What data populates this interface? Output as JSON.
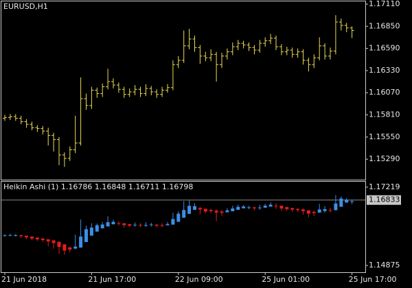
{
  "chart_data": [
    {
      "type": "ohlc",
      "title": "EURUSD,H1",
      "color": "#eedd55",
      "categories": [
        "21 Jun 2018",
        null,
        null,
        null,
        null,
        null,
        null,
        null,
        null,
        null,
        null,
        null,
        null,
        null,
        null,
        null,
        "21 Jun 17:00",
        null,
        null,
        null,
        null,
        null,
        null,
        null,
        null,
        null,
        null,
        null,
        null,
        null,
        null,
        null,
        "22 Jun 09:00",
        null,
        null,
        null,
        null,
        null,
        null,
        null,
        null,
        null,
        null,
        null,
        null,
        null,
        null,
        null,
        "25 Jun 01:00",
        null,
        null,
        null,
        null,
        null,
        null,
        null,
        null,
        null,
        null,
        null,
        null,
        null,
        null,
        null,
        "25 Jun 17:00"
      ],
      "open": [
        1.1577,
        1.1578,
        1.1579,
        1.1577,
        1.1573,
        1.157,
        1.1566,
        1.1565,
        1.1562,
        1.1557,
        1.1552,
        1.1534,
        1.153,
        1.154,
        1.1548,
        1.16,
        1.1592,
        1.161,
        1.1606,
        1.1614,
        1.162,
        1.1616,
        1.1611,
        1.1605,
        1.1608,
        1.1611,
        1.1606,
        1.1612,
        1.1608,
        1.1605,
        1.161,
        1.1613,
        1.164,
        1.1645,
        1.1662,
        1.167,
        1.166,
        1.165,
        1.1648,
        1.1652,
        1.164,
        1.165,
        1.1655,
        1.1661,
        1.1665,
        1.1663,
        1.166,
        1.1657,
        1.1665,
        1.1668,
        1.1671,
        1.1661,
        1.1655,
        1.1657,
        1.1652,
        1.1655,
        1.1645,
        1.164,
        1.1648,
        1.1662,
        1.165,
        1.1656,
        1.169,
        1.1686,
        1.1683
      ],
      "high": [
        1.1581,
        1.1582,
        1.1582,
        1.158,
        1.1576,
        1.1573,
        1.1569,
        1.1568,
        1.1566,
        1.156,
        1.1555,
        1.1537,
        1.1544,
        1.158,
        1.1625,
        1.1606,
        1.1614,
        1.1613,
        1.1618,
        1.1635,
        1.1624,
        1.1619,
        1.1614,
        1.1612,
        1.1616,
        1.1614,
        1.1617,
        1.1615,
        1.1611,
        1.1614,
        1.1617,
        1.1645,
        1.165,
        1.168,
        1.1682,
        1.1674,
        1.1663,
        1.1655,
        1.1658,
        1.1655,
        1.1654,
        1.1659,
        1.1666,
        1.1669,
        1.1668,
        1.1666,
        1.1663,
        1.1669,
        1.1672,
        1.1676,
        1.1674,
        1.1664,
        1.1661,
        1.166,
        1.1659,
        1.1658,
        1.1648,
        1.1652,
        1.1672,
        1.1665,
        1.166,
        1.1698,
        1.1694,
        1.1689,
        1.16848
      ],
      "low": [
        1.1574,
        1.1575,
        1.1574,
        1.157,
        1.1566,
        1.1563,
        1.1561,
        1.1558,
        1.1545,
        1.1538,
        1.1522,
        1.152,
        1.1527,
        1.1536,
        1.1545,
        1.1587,
        1.1588,
        1.1601,
        1.1602,
        1.1611,
        1.1612,
        1.1607,
        1.1601,
        1.1602,
        1.1604,
        1.1602,
        1.1603,
        1.1604,
        1.1601,
        1.1602,
        1.1607,
        1.161,
        1.1636,
        1.1642,
        1.1658,
        1.1655,
        1.1641,
        1.1644,
        1.1644,
        1.162,
        1.1636,
        1.1646,
        1.1651,
        1.1657,
        1.1659,
        1.1656,
        1.1652,
        1.1654,
        1.1661,
        1.1664,
        1.1657,
        1.1651,
        1.1651,
        1.1648,
        1.1648,
        1.164,
        1.1632,
        1.1636,
        1.1645,
        1.1646,
        1.1646,
        1.1652,
        1.168,
        1.1678,
        1.16711
      ],
      "close": [
        1.1578,
        1.1579,
        1.1577,
        1.1573,
        1.157,
        1.1566,
        1.1565,
        1.1562,
        1.1557,
        1.1552,
        1.1534,
        1.153,
        1.154,
        1.1548,
        1.16,
        1.1592,
        1.161,
        1.1606,
        1.1614,
        1.162,
        1.1616,
        1.1611,
        1.1605,
        1.1608,
        1.1611,
        1.1606,
        1.1612,
        1.1608,
        1.1605,
        1.161,
        1.1613,
        1.164,
        1.1645,
        1.1662,
        1.167,
        1.166,
        1.165,
        1.1648,
        1.1652,
        1.164,
        1.165,
        1.1655,
        1.1661,
        1.1665,
        1.1663,
        1.166,
        1.1657,
        1.1665,
        1.1668,
        1.1671,
        1.1661,
        1.1655,
        1.1657,
        1.1652,
        1.1655,
        1.1645,
        1.164,
        1.1648,
        1.1662,
        1.165,
        1.1656,
        1.169,
        1.1686,
        1.1683,
        1.168
      ],
      "ylim": [
        1.1505,
        1.17142
      ],
      "yticks": [
        {
          "value": 1.1711,
          "label": "1.17110"
        },
        {
          "value": 1.1685,
          "label": "1.16850"
        },
        {
          "value": 1.1659,
          "label": "1.16590"
        },
        {
          "value": 1.1633,
          "label": "1.16330"
        },
        {
          "value": 1.1607,
          "label": "1.16070"
        },
        {
          "value": 1.1581,
          "label": "1.15810"
        },
        {
          "value": 1.1555,
          "label": "1.15550"
        },
        {
          "value": 1.1529,
          "label": "1.15290"
        }
      ]
    },
    {
      "type": "candlestick",
      "title": "Heikin Ashi (1)",
      "up_color": "#3c8ee6",
      "down_color": "#e41c1c",
      "open": [
        1.1577,
        1.157725,
        1.15779,
        1.157795,
        1.15765,
        1.1574,
        1.1571,
        1.156825,
        1.15659,
        1.15627,
        1.15586,
        1.15508,
        1.15414,
        1.15382,
        1.15411,
        1.15576,
        1.15768,
        1.15889,
        1.15985,
        1.16043,
        1.16107,
        1.16144,
        1.1614,
        1.1611,
        1.16088,
        1.16092,
        1.16089,
        1.1609,
        1.16095,
        1.1608,
        1.16078,
        1.16097,
        1.16181,
        1.16303,
        1.16419,
        1.1654,
        1.16595,
        1.16573,
        1.16532,
        1.16516,
        1.16488,
        1.16469,
        1.16497,
        1.16539,
        1.16585,
        1.16613,
        1.16614,
        1.166,
        1.16605,
        1.16635,
        1.16665,
        1.16663,
        1.16622,
        1.16591,
        1.16568,
        1.16552,
        1.16526,
        1.16476,
        1.16458,
        1.16504,
        1.16532,
        1.16531,
        1.16631,
        1.16756,
        1.16786
      ],
      "high": [
        1.1581,
        1.1582,
        1.1582,
        1.158,
        1.15765,
        1.1574,
        1.1571,
        1.156825,
        1.1566,
        1.15627,
        1.15586,
        1.15508,
        1.1544,
        1.158,
        1.1625,
        1.1606,
        1.1614,
        1.1613,
        1.1618,
        1.1635,
        1.1624,
        1.1619,
        1.1614,
        1.1612,
        1.1616,
        1.1614,
        1.1617,
        1.1615,
        1.1611,
        1.1614,
        1.1617,
        1.1645,
        1.165,
        1.168,
        1.1682,
        1.1674,
        1.1663,
        1.16573,
        1.1658,
        1.1655,
        1.1654,
        1.1659,
        1.1666,
        1.1669,
        1.1668,
        1.1666,
        1.1663,
        1.1669,
        1.1672,
        1.1676,
        1.1674,
        1.16663,
        1.16622,
        1.166,
        1.1659,
        1.1658,
        1.16526,
        1.1652,
        1.1672,
        1.1665,
        1.166,
        1.1698,
        1.1694,
        1.1689,
        1.16848
      ],
      "low": [
        1.1574,
        1.1575,
        1.1574,
        1.157,
        1.1566,
        1.1563,
        1.1561,
        1.1558,
        1.1545,
        1.1538,
        1.1522,
        1.152,
        1.1527,
        1.1536,
        1.15411,
        1.15576,
        1.15768,
        1.15889,
        1.15985,
        1.16043,
        1.16107,
        1.1607,
        1.1601,
        1.1602,
        1.1604,
        1.1602,
        1.1603,
        1.1604,
        1.1601,
        1.1602,
        1.1607,
        1.16097,
        1.16181,
        1.16303,
        1.16419,
        1.1654,
        1.1641,
        1.1644,
        1.1644,
        1.162,
        1.1636,
        1.1646,
        1.16497,
        1.16539,
        1.16585,
        1.1656,
        1.1652,
        1.1654,
        1.16605,
        1.16635,
        1.1657,
        1.1651,
        1.1651,
        1.1648,
        1.1648,
        1.164,
        1.1632,
        1.1636,
        1.1645,
        1.1646,
        1.1646,
        1.1652,
        1.16631,
        1.16756,
        1.16711
      ],
      "close": [
        1.15775,
        1.15785,
        1.1578,
        1.1575,
        1.15715,
        1.1568,
        1.15655,
        1.15635,
        1.15595,
        1.15545,
        1.1543,
        1.1532,
        1.1535,
        1.1544,
        1.1574,
        1.1596,
        1.1601,
        1.1608,
        1.161,
        1.1617,
        1.1618,
        1.16135,
        1.1608,
        1.16065,
        1.16095,
        1.16085,
        1.1609,
        1.161,
        1.16065,
        1.16075,
        1.16115,
        1.16265,
        1.16425,
        1.16535,
        1.1666,
        1.1665,
        1.1655,
        1.1649,
        1.165,
        1.1646,
        1.1645,
        1.16525,
        1.1658,
        1.1663,
        1.1664,
        1.16615,
        1.16585,
        1.1661,
        1.16665,
        1.16695,
        1.1666,
        1.1658,
        1.1656,
        1.16545,
        1.16535,
        1.165,
        1.16425,
        1.1644,
        1.1655,
        1.1656,
        1.1653,
        1.1673,
        1.1688,
        1.16845,
        1.16798
      ],
      "hline": 1.16833,
      "ylim": [
        1.14673,
        1.17381
      ],
      "yticks": [
        1.17219,
        1.14875
      ]
    }
  ]
}
